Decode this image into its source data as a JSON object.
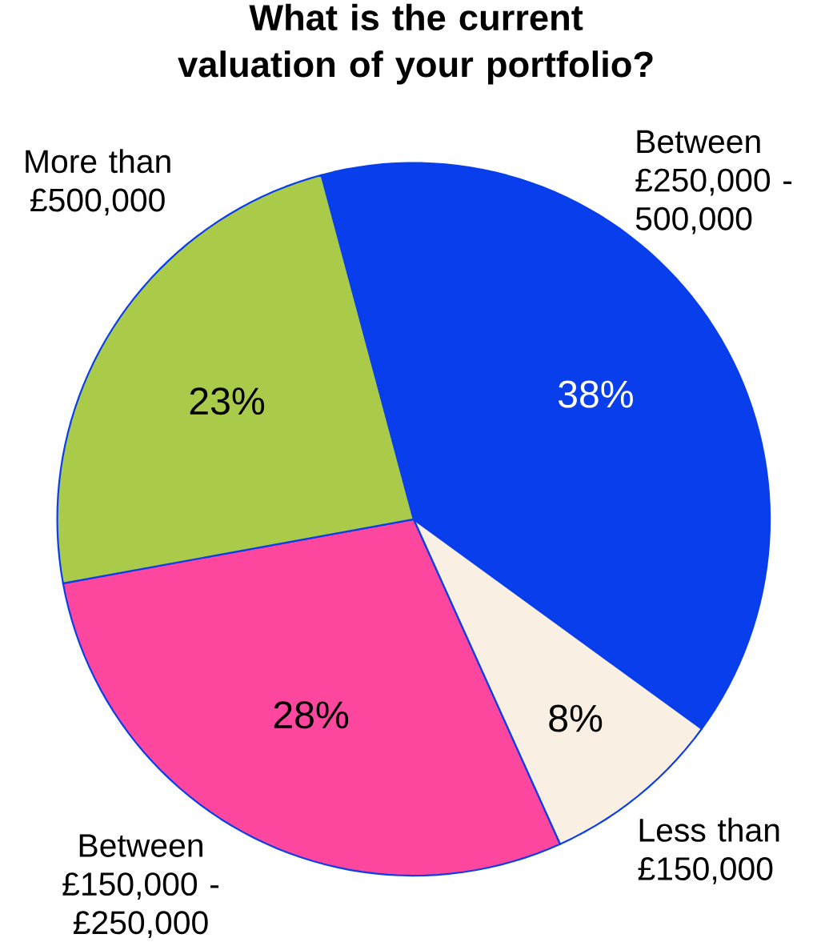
{
  "chart_data": {
    "type": "pie",
    "title": "What is the current valuation of your portfolio?",
    "categories": [
      "Between £250,000 - 500,000",
      "Less than £150,000",
      "Between £150,000 - £250,000",
      "More than £500,000"
    ],
    "values": [
      38,
      8,
      28,
      23
    ],
    "colors": [
      "#083eeb",
      "#faefe3",
      "#fd469e",
      "#aaca4a"
    ],
    "value_labels": [
      "38%",
      "8%",
      "28%",
      "23%"
    ]
  }
}
